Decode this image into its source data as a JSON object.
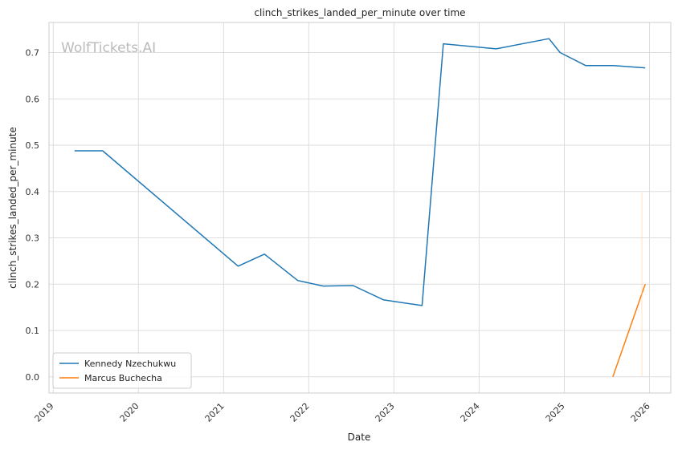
{
  "chart_data": {
    "type": "line",
    "title": "clinch_strikes_landed_per_minute over time",
    "xlabel": "Date",
    "ylabel": "clinch_strikes_landed_per_minute",
    "watermark": "WolfTickets.AI",
    "xlim": [
      2018.95,
      2026.25
    ],
    "ylim": [
      -0.035,
      0.765
    ],
    "x_ticks": [
      2019,
      2020,
      2021,
      2022,
      2023,
      2024,
      2025,
      2026
    ],
    "x_tick_labels": [
      "2019",
      "2020",
      "2021",
      "2022",
      "2023",
      "2024",
      "2025",
      "2026"
    ],
    "y_ticks": [
      0.0,
      0.1,
      0.2,
      0.3,
      0.4,
      0.5,
      0.6,
      0.7
    ],
    "y_tick_labels": [
      "0.0",
      "0.1",
      "0.2",
      "0.3",
      "0.4",
      "0.5",
      "0.6",
      "0.7"
    ],
    "grid": true,
    "legend_position": "lower-left",
    "series": [
      {
        "name": "Kennedy Nzechukwu",
        "color": "#1f77b4",
        "x": [
          2019.25,
          2019.58,
          2021.17,
          2021.48,
          2021.87,
          2022.17,
          2022.52,
          2022.88,
          2023.33,
          2023.58,
          2024.2,
          2024.82,
          2024.95,
          2025.25,
          2025.58,
          2025.95
        ],
        "y": [
          0.488,
          0.488,
          0.239,
          0.265,
          0.208,
          0.196,
          0.197,
          0.166,
          0.154,
          0.719,
          0.708,
          0.73,
          0.7,
          0.672,
          0.672,
          0.667
        ]
      },
      {
        "name": "Marcus Buchecha",
        "color": "#ff7f0e",
        "x": [
          2025.57,
          2025.95
        ],
        "y": [
          0.0,
          0.2
        ]
      }
    ]
  }
}
